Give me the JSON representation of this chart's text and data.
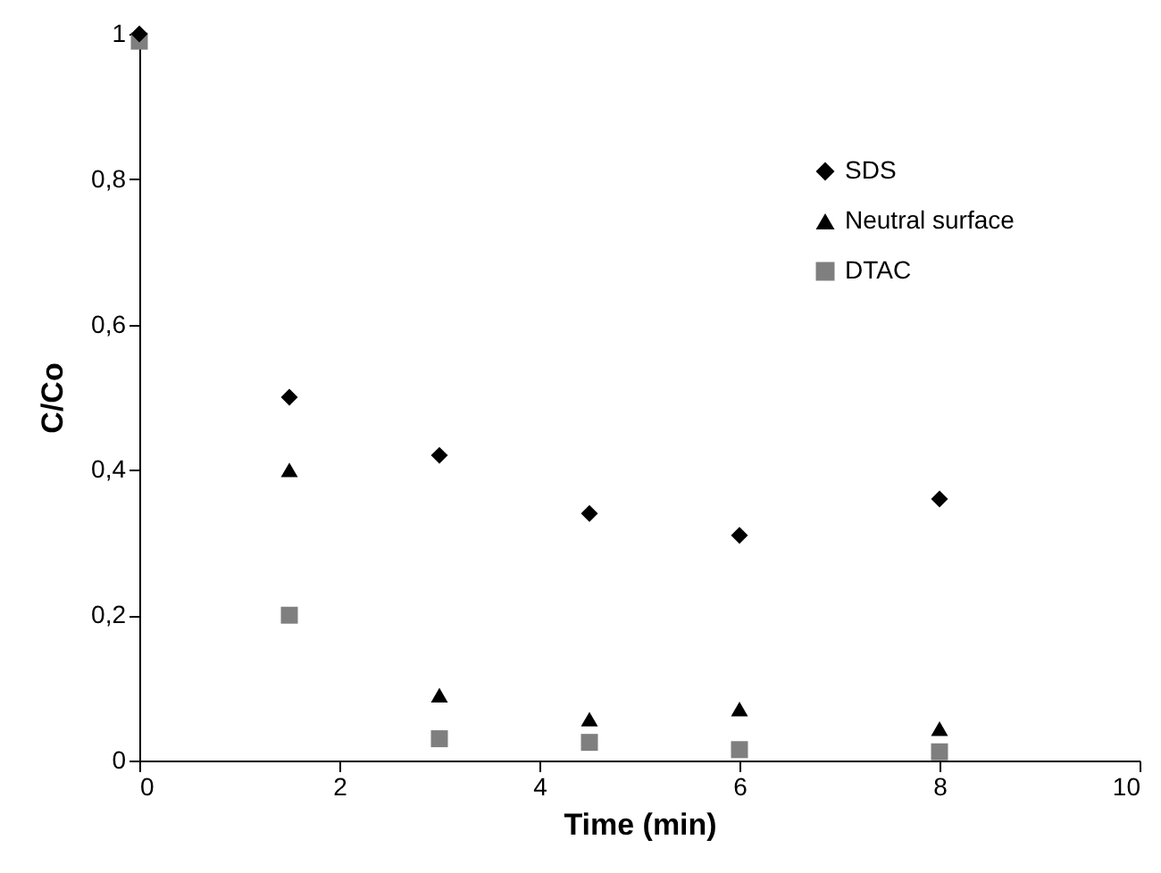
{
  "chart_data": {
    "type": "scatter",
    "xlabel": "Time (min)",
    "ylabel": "C/Co",
    "x": [
      0,
      1.5,
      3,
      4.5,
      6,
      8
    ],
    "series": [
      {
        "name": "SDS",
        "color": "#000000",
        "marker": "diamond",
        "values": [
          1,
          0.5,
          0.42,
          0.34,
          0.31,
          0.36
        ]
      },
      {
        "name": "Neutral surface",
        "color": "#000000",
        "marker": "triangle",
        "values": [
          null,
          0.4,
          0.09,
          0.057,
          0.071,
          0.044
        ]
      },
      {
        "name": "DTAC",
        "color": "#7f7f7f",
        "marker": "square",
        "values": [
          0.99,
          0.2,
          0.03,
          0.025,
          0.015,
          0.012
        ]
      }
    ],
    "xlim": [
      0,
      10
    ],
    "xticks": [
      0,
      2,
      4,
      6,
      8,
      10
    ],
    "ylim": [
      0,
      1
    ],
    "yticks": [
      0,
      {
        "value": 0.2,
        "label": "0,2"
      },
      {
        "value": 0.4,
        "label": "0,4"
      },
      {
        "value": 0.6,
        "label": "0,6"
      },
      {
        "value": 0.8,
        "label": "0,8"
      },
      1
    ],
    "grid": false,
    "legend": "top right"
  }
}
